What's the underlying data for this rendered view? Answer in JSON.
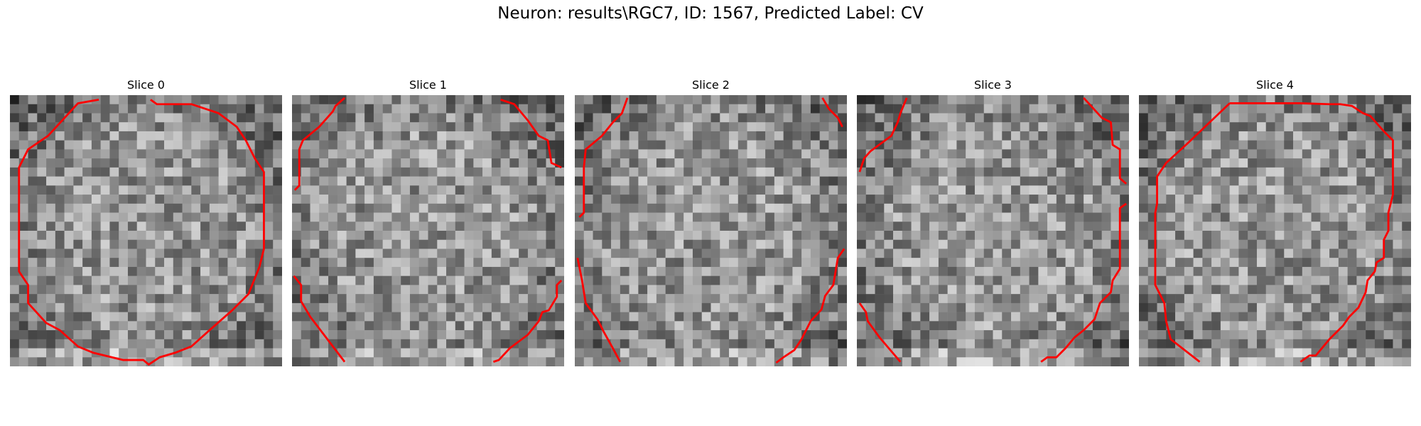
{
  "figure": {
    "title": "Neuron: results\\RGC7, ID: 1567, Predicted Label: CV"
  },
  "panels": [
    {
      "title": "Slice 0",
      "seed": 11
    },
    {
      "title": "Slice 1",
      "seed": 23
    },
    {
      "title": "Slice 2",
      "seed": 37
    },
    {
      "title": "Slice 3",
      "seed": 41
    },
    {
      "title": "Slice 4",
      "seed": 59
    }
  ],
  "colors": {
    "contour": "#ff0000",
    "background": "#ffffff"
  }
}
